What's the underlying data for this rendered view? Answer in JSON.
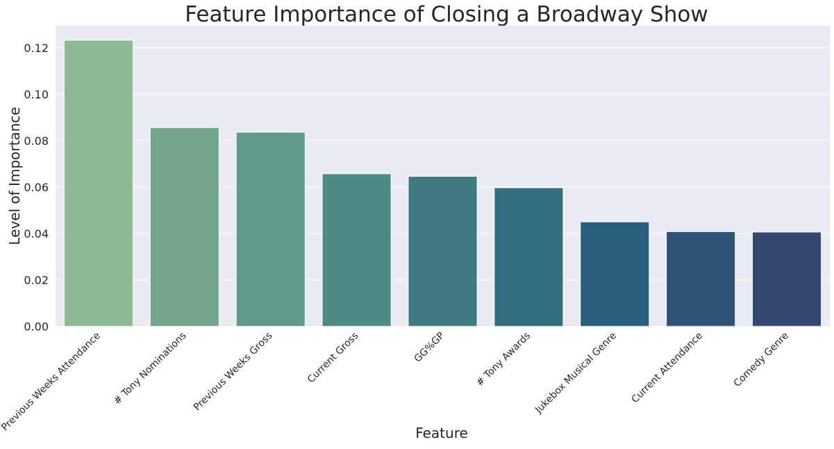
{
  "chart_data": {
    "type": "bar",
    "title": "Feature Importance of Closing a Broadway Show",
    "xlabel": "Feature",
    "ylabel": "Level of Importance",
    "categories": [
      "Previous Weeks Attendance",
      "# Tony Nominations",
      "Previous Weeks Gross",
      "Current Gross",
      "GG%GP",
      "# Tony Awards",
      "Jukebox Musical Genre",
      "Current Attendance",
      "Comedy Genre"
    ],
    "values": [
      0.1232,
      0.0856,
      0.0836,
      0.0657,
      0.0646,
      0.0597,
      0.045,
      0.0408,
      0.0406
    ],
    "colors": [
      "#8fb995",
      "#74a68d",
      "#609a8a",
      "#4f8b85",
      "#407a80",
      "#336e7e",
      "#2a5e7e",
      "#2f5177",
      "#344672"
    ],
    "yticks": [
      0.0,
      0.02,
      0.04,
      0.06,
      0.08,
      0.1,
      0.12
    ],
    "ytick_labels": [
      "0.00",
      "0.02",
      "0.04",
      "0.06",
      "0.08",
      "0.10",
      "0.12"
    ],
    "ylim": [
      0,
      0.1295
    ],
    "grid": true,
    "background": "#eaeaf2",
    "grid_color": "#ffffff"
  }
}
